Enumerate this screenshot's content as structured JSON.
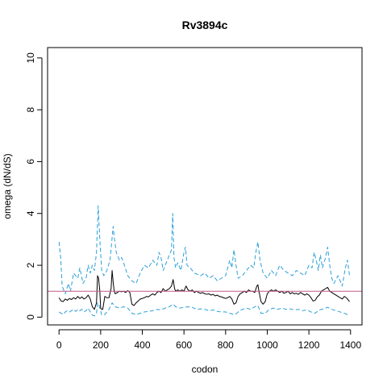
{
  "chart_data": {
    "type": "line",
    "title": "Rv3894c",
    "xlabel": "codon",
    "ylabel": "omega (dN/dS)",
    "xlim": [
      -55,
      1455
    ],
    "ylim": [
      -0.3,
      10.4
    ],
    "x_ticks": [
      "0",
      "200",
      "400",
      "600",
      "800",
      "1000",
      "1200",
      "1400"
    ],
    "y_ticks": [
      "0",
      "2",
      "4",
      "6",
      "8",
      "10"
    ],
    "reference_line": {
      "y": 1.0,
      "color": "#c05a8a"
    },
    "grid": false,
    "series": [
      {
        "role": "upper-bound",
        "style": "dashed",
        "color": "#2a9fd8",
        "x": [
          0,
          8,
          15,
          30,
          45,
          55,
          70,
          90,
          100,
          115,
          130,
          140,
          150,
          160,
          170,
          180,
          188,
          196,
          205,
          215,
          230,
          245,
          260,
          265,
          275,
          290,
          300,
          310,
          330,
          350,
          370,
          390,
          410,
          430,
          450,
          470,
          480,
          490,
          500,
          510,
          520,
          530,
          540,
          546,
          552,
          560,
          570,
          585,
          600,
          607,
          615,
          630,
          650,
          680,
          700,
          720,
          740,
          760,
          780,
          800,
          820,
          830,
          840,
          850,
          860,
          880,
          900,
          920,
          935,
          945,
          955,
          965,
          980,
          1000,
          1020,
          1040,
          1060,
          1080,
          1100,
          1120,
          1140,
          1160,
          1180,
          1200,
          1215,
          1225,
          1235,
          1245,
          1255,
          1265,
          1280,
          1290,
          1300,
          1310,
          1320,
          1340,
          1360,
          1375,
          1385,
          1395
        ],
        "y": [
          2.9,
          2.3,
          1.2,
          0.9,
          1.3,
          1.0,
          1.7,
          1.5,
          1.9,
          1.3,
          1.5,
          2.0,
          1.7,
          2.0,
          1.8,
          2.5,
          4.3,
          3.0,
          1.8,
          1.6,
          1.8,
          2.2,
          3.5,
          3.1,
          2.5,
          2.2,
          2.3,
          2.1,
          1.6,
          1.4,
          1.3,
          1.7,
          2.0,
          1.9,
          2.2,
          2.0,
          2.5,
          2.3,
          1.8,
          2.0,
          2.2,
          2.4,
          2.6,
          4.0,
          2.3,
          1.9,
          2.1,
          1.8,
          2.5,
          2.7,
          2.0,
          1.9,
          1.7,
          1.6,
          1.7,
          1.5,
          1.6,
          1.4,
          1.5,
          1.6,
          2.2,
          1.9,
          2.6,
          2.0,
          1.5,
          1.6,
          1.8,
          2.0,
          1.9,
          2.5,
          2.9,
          2.2,
          1.7,
          1.5,
          1.8,
          1.6,
          2.0,
          1.8,
          1.7,
          1.6,
          1.8,
          1.7,
          1.6,
          2.0,
          1.9,
          2.5,
          2.2,
          1.8,
          2.4,
          1.9,
          2.3,
          2.7,
          2.0,
          1.5,
          1.3,
          1.6,
          1.2,
          1.9,
          2.2,
          1.6
        ]
      },
      {
        "role": "estimate",
        "style": "solid",
        "color": "#000000",
        "x": [
          0,
          10,
          20,
          30,
          40,
          50,
          60,
          70,
          80,
          90,
          100,
          110,
          120,
          130,
          140,
          150,
          160,
          170,
          180,
          185,
          190,
          196,
          200,
          205,
          210,
          220,
          230,
          240,
          250,
          255,
          260,
          265,
          270,
          280,
          290,
          300,
          310,
          320,
          330,
          340,
          350,
          360,
          370,
          380,
          390,
          400,
          410,
          420,
          430,
          440,
          450,
          460,
          470,
          480,
          490,
          500,
          510,
          520,
          530,
          540,
          548,
          555,
          560,
          570,
          580,
          590,
          600,
          610,
          620,
          630,
          640,
          650,
          660,
          670,
          680,
          690,
          700,
          710,
          720,
          730,
          740,
          750,
          760,
          770,
          780,
          790,
          800,
          810,
          820,
          830,
          840,
          850,
          860,
          870,
          880,
          890,
          900,
          910,
          920,
          930,
          940,
          950,
          955,
          960,
          970,
          980,
          990,
          1000,
          1010,
          1020,
          1030,
          1040,
          1050,
          1060,
          1070,
          1080,
          1090,
          1100,
          1110,
          1120,
          1130,
          1140,
          1150,
          1160,
          1170,
          1180,
          1190,
          1200,
          1210,
          1220,
          1230,
          1240,
          1250,
          1260,
          1270,
          1280,
          1290,
          1300,
          1310,
          1320,
          1330,
          1340,
          1350,
          1360,
          1370,
          1380,
          1390,
          1395
        ],
        "y": [
          0.75,
          0.62,
          0.6,
          0.7,
          0.65,
          0.72,
          0.68,
          0.75,
          0.7,
          0.8,
          0.72,
          0.78,
          0.7,
          0.75,
          0.85,
          0.7,
          0.4,
          0.3,
          0.55,
          1.6,
          1.5,
          1.0,
          0.35,
          0.3,
          0.3,
          0.8,
          0.75,
          0.75,
          1.1,
          1.8,
          1.35,
          1.0,
          0.9,
          0.95,
          1.0,
          0.98,
          1.0,
          0.95,
          1.02,
          0.95,
          0.5,
          0.45,
          0.55,
          0.62,
          0.7,
          0.72,
          0.75,
          0.8,
          0.78,
          0.85,
          0.9,
          0.85,
          0.95,
          1.0,
          0.95,
          1.1,
          1.0,
          1.05,
          1.1,
          1.2,
          1.45,
          1.1,
          1.0,
          1.05,
          1.0,
          1.05,
          1.0,
          1.2,
          1.05,
          1.0,
          1.05,
          0.95,
          1.0,
          0.95,
          0.92,
          0.95,
          0.9,
          0.88,
          0.9,
          0.85,
          0.88,
          0.82,
          0.85,
          0.8,
          0.78,
          0.75,
          0.72,
          0.75,
          0.8,
          0.7,
          0.5,
          0.55,
          0.8,
          0.9,
          0.95,
          1.0,
          0.95,
          1.05,
          1.0,
          1.0,
          0.95,
          1.2,
          1.25,
          1.0,
          0.6,
          0.5,
          0.6,
          0.9,
          1.0,
          1.05,
          1.0,
          1.05,
          1.0,
          0.95,
          1.0,
          0.92,
          0.95,
          1.0,
          0.9,
          0.95,
          0.9,
          0.92,
          0.88,
          0.95,
          0.9,
          0.85,
          0.9,
          0.85,
          0.75,
          0.62,
          0.65,
          0.78,
          0.85,
          1.0,
          1.05,
          1.1,
          1.15,
          1.0,
          0.95,
          0.9,
          0.85,
          0.8,
          0.75,
          0.7,
          0.8,
          0.75,
          0.65,
          0.6
        ]
      },
      {
        "role": "lower-bound",
        "style": "dashed",
        "color": "#2a9fd8",
        "x": [
          0,
          10,
          20,
          30,
          40,
          50,
          60,
          70,
          80,
          90,
          100,
          110,
          120,
          130,
          140,
          150,
          160,
          170,
          180,
          185,
          190,
          196,
          205,
          220,
          240,
          255,
          260,
          270,
          290,
          310,
          330,
          350,
          370,
          390,
          410,
          430,
          450,
          470,
          490,
          510,
          530,
          548,
          560,
          580,
          600,
          620,
          640,
          660,
          680,
          700,
          720,
          740,
          760,
          780,
          800,
          820,
          840,
          850,
          860,
          880,
          900,
          920,
          940,
          955,
          970,
          990,
          1010,
          1030,
          1050,
          1070,
          1090,
          1110,
          1130,
          1150,
          1170,
          1190,
          1210,
          1230,
          1250,
          1270,
          1290,
          1310,
          1330,
          1350,
          1370,
          1385,
          1395
        ],
        "y": [
          0.2,
          0.15,
          0.1,
          0.2,
          0.25,
          0.2,
          0.25,
          0.3,
          0.22,
          0.3,
          0.25,
          0.3,
          0.2,
          0.25,
          0.35,
          0.2,
          0.08,
          0.05,
          0.15,
          0.55,
          0.5,
          0.35,
          0.08,
          0.1,
          0.3,
          0.55,
          0.5,
          0.4,
          0.35,
          0.4,
          0.35,
          0.15,
          0.1,
          0.15,
          0.2,
          0.22,
          0.25,
          0.3,
          0.28,
          0.35,
          0.4,
          0.5,
          0.4,
          0.35,
          0.38,
          0.4,
          0.38,
          0.3,
          0.32,
          0.3,
          0.25,
          0.28,
          0.22,
          0.2,
          0.2,
          0.15,
          0.1,
          0.12,
          0.2,
          0.3,
          0.35,
          0.3,
          0.4,
          0.45,
          0.15,
          0.15,
          0.3,
          0.35,
          0.3,
          0.35,
          0.3,
          0.32,
          0.28,
          0.3,
          0.25,
          0.28,
          0.2,
          0.15,
          0.28,
          0.32,
          0.38,
          0.3,
          0.25,
          0.2,
          0.15,
          0.1,
          0.12
        ]
      }
    ]
  }
}
